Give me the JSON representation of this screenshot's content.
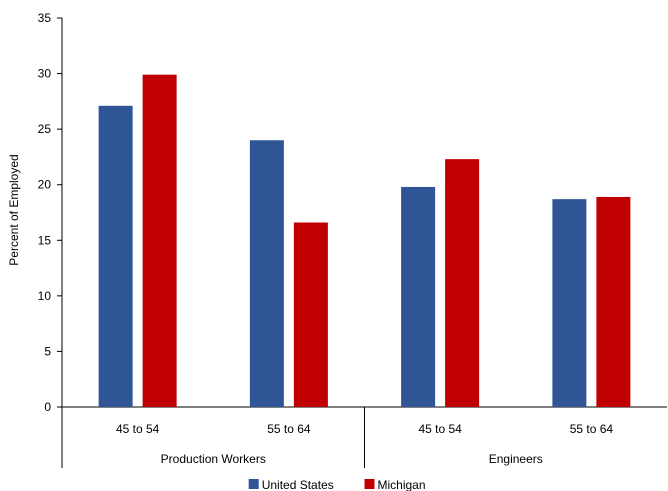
{
  "chart_data": {
    "type": "bar",
    "title": "",
    "xlabel": "",
    "ylabel": "Percent of Employed",
    "ylim": [
      0,
      35
    ],
    "yticks": [
      0,
      5,
      10,
      15,
      20,
      25,
      30,
      35
    ],
    "grid": false,
    "legend_position": "bottom",
    "groups": [
      {
        "label": "Production Workers",
        "categories": [
          "45 to 54",
          "55 to 64"
        ]
      },
      {
        "label": "Engineers",
        "categories": [
          "45 to 54",
          "55 to 64"
        ]
      }
    ],
    "categories": [
      "45 to 54",
      "55 to 64",
      "45 to 54",
      "55 to 64"
    ],
    "series": [
      {
        "name": "United States",
        "color": "#2F5597",
        "values": [
          27.1,
          24.0,
          19.8,
          18.7
        ]
      },
      {
        "name": "Michigan",
        "color": "#C00000",
        "values": [
          29.9,
          16.6,
          22.3,
          18.9
        ]
      }
    ]
  }
}
